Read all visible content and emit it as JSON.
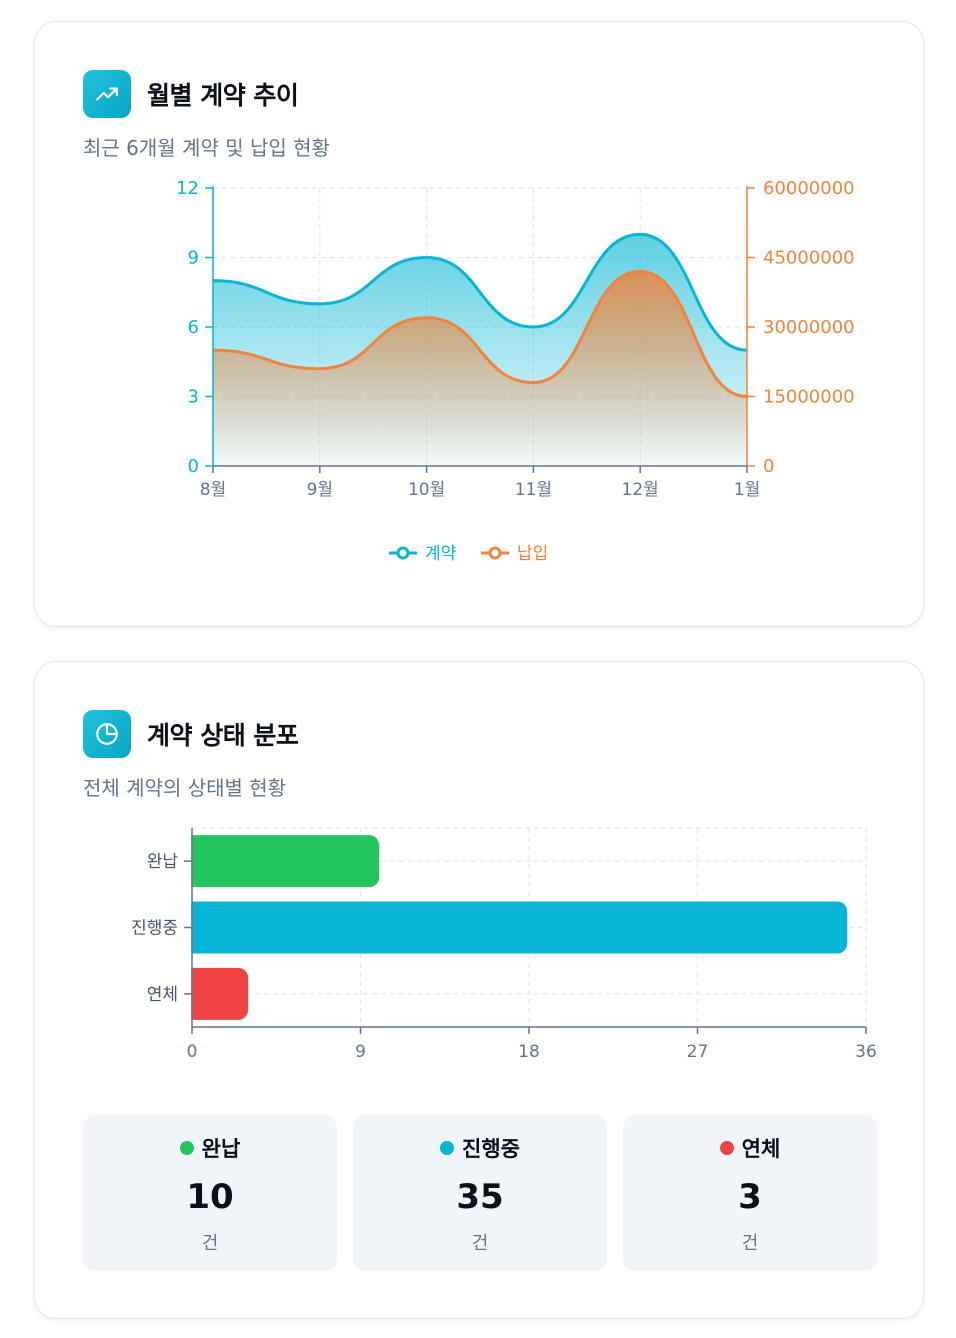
{
  "trend_card": {
    "title": "월별 계약 추이",
    "subtitle": "최근 6개월 계약 및 납입 현황",
    "icon": "trending-up-icon"
  },
  "status_card": {
    "title": "계약 상태 분포",
    "subtitle": "전체 계약의 상태별 현황",
    "icon": "pie-chart-icon"
  },
  "stats": [
    {
      "label": "완납",
      "value": "10",
      "unit": "건",
      "color": "#22c55e"
    },
    {
      "label": "진행중",
      "value": "35",
      "unit": "건",
      "color": "#06b6d4"
    },
    {
      "label": "연체",
      "value": "3",
      "unit": "건",
      "color": "#ef4444"
    }
  ],
  "chart_data": [
    {
      "type": "area",
      "categories": [
        "8월",
        "9월",
        "10월",
        "11월",
        "12월",
        "1월"
      ],
      "series": [
        {
          "name": "계약",
          "axis": "left",
          "color": "#06b6d4",
          "values": [
            8,
            7,
            9,
            6,
            10,
            5
          ]
        },
        {
          "name": "납입",
          "axis": "right",
          "color": "#f0843c",
          "values": [
            25000000,
            21000000,
            32000000,
            18000000,
            42000000,
            15000000
          ]
        }
      ],
      "y_left": {
        "min": 0,
        "max": 12,
        "ticks": [
          "0",
          "3",
          "6",
          "9",
          "12"
        ]
      },
      "y_right": {
        "min": 0,
        "max": 60000000,
        "ticks": [
          "0",
          "15000000",
          "30000000",
          "45000000",
          "60000000"
        ]
      },
      "grid": true,
      "legend": "bottom-center"
    },
    {
      "type": "bar",
      "orientation": "horizontal",
      "categories": [
        "완납",
        "진행중",
        "연체"
      ],
      "values": [
        10,
        35,
        3
      ],
      "colors": [
        "#22c55e",
        "#06b6d4",
        "#ef4444"
      ],
      "xlim": [
        0,
        36
      ],
      "x_ticks": [
        "0",
        "9",
        "18",
        "27",
        "36"
      ],
      "grid": true
    }
  ]
}
